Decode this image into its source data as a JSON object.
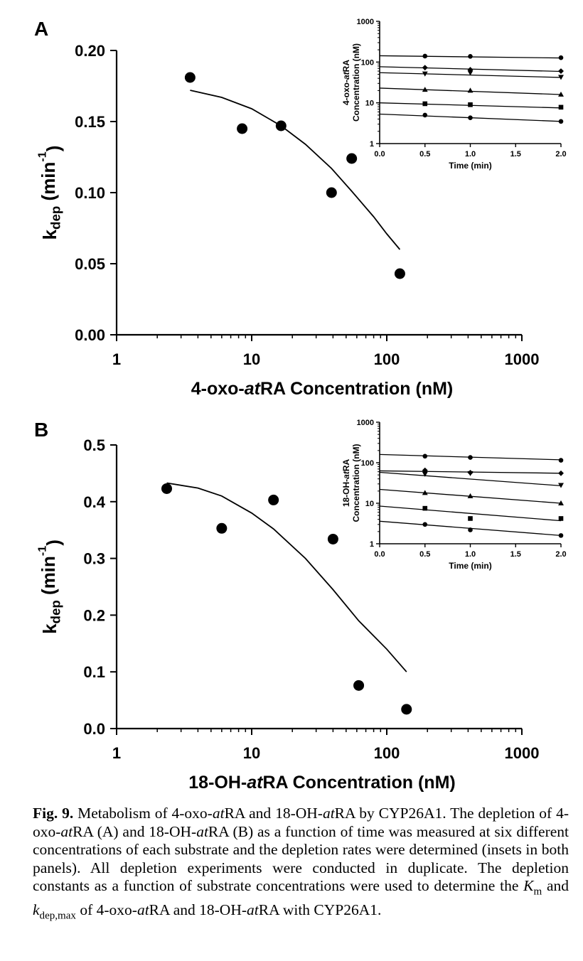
{
  "chart_data": [
    {
      "panel": "A",
      "type": "scatter",
      "xlabel_parts": [
        "4-oxo-",
        "at",
        "RA Concentration (nM)"
      ],
      "ylabel": "kdep (min-1)",
      "ylabel_parts": [
        "k",
        "dep",
        " (min",
        "-1",
        ")"
      ],
      "x_scale": "log",
      "xlim": [
        1,
        1000
      ],
      "ylim": [
        0,
        0.2
      ],
      "x_ticks": [
        1,
        10,
        100,
        1000
      ],
      "x_tick_labels": [
        "1",
        "10",
        "100",
        "1000"
      ],
      "y_ticks": [
        0,
        0.05,
        0.1,
        0.15,
        0.2
      ],
      "y_tick_labels": [
        "0.00",
        "0.05",
        "0.10",
        "0.15",
        "0.20"
      ],
      "points": [
        {
          "x": 3.5,
          "y": 0.181
        },
        {
          "x": 8.5,
          "y": 0.145
        },
        {
          "x": 16.5,
          "y": 0.147
        },
        {
          "x": 39,
          "y": 0.1
        },
        {
          "x": 55,
          "y": 0.124
        },
        {
          "x": 125,
          "y": 0.043
        }
      ],
      "fit": {
        "x": [
          3.5,
          6,
          10,
          16.5,
          25,
          39,
          55,
          80,
          100,
          125
        ],
        "y": [
          0.172,
          0.167,
          0.159,
          0.147,
          0.134,
          0.117,
          0.101,
          0.083,
          0.071,
          0.06
        ]
      },
      "inset": {
        "ylabel_parts": [
          "4-oxo-",
          "at",
          "RA"
        ],
        "ylabel2": "Concentration (nM)",
        "xlabel": "Time (min)",
        "y_scale": "log",
        "xlim": [
          0,
          2
        ],
        "ylim": [
          1,
          1000
        ],
        "x_ticks": [
          0,
          0.5,
          1,
          1.5,
          2
        ],
        "x_tick_labels": [
          "0.0",
          "0.5",
          "1.0",
          "1.5",
          "2.0"
        ],
        "y_ticks": [
          1,
          10,
          100,
          1000
        ],
        "y_tick_labels": [
          "1",
          "10",
          "100",
          "1000"
        ],
        "series": [
          {
            "marker": "circle",
            "x": [
              0.5,
              1,
              2
            ],
            "y": [
              140,
              138,
              128
            ],
            "fit": [
              143,
              126
            ]
          },
          {
            "marker": "diamond",
            "x": [
              0.5,
              1,
              2
            ],
            "y": [
              73,
              65,
              60
            ],
            "fit": [
              77,
              59
            ]
          },
          {
            "marker": "tri-down",
            "x": [
              0.5,
              1,
              2
            ],
            "y": [
              52,
              55,
              43
            ],
            "fit": [
              55,
              42
            ]
          },
          {
            "marker": "triangle",
            "x": [
              0.5,
              1,
              2
            ],
            "y": [
              21,
              20,
              16
            ],
            "fit": [
              23,
              16
            ]
          },
          {
            "marker": "square",
            "x": [
              0.5,
              1,
              2
            ],
            "y": [
              9.5,
              9,
              7.8
            ],
            "fit": [
              10,
              7.5
            ]
          },
          {
            "marker": "circle",
            "x": [
              0.5,
              1,
              2
            ],
            "y": [
              5,
              4.3,
              3.5
            ],
            "fit": [
              5.3,
              3.5
            ]
          }
        ]
      }
    },
    {
      "panel": "B",
      "type": "scatter",
      "xlabel_parts": [
        "18-OH-",
        "at",
        "RA Concentration (nM)"
      ],
      "ylabel": "kdep (min-1)",
      "ylabel_parts": [
        "k",
        "dep",
        " (min",
        "-1",
        ")"
      ],
      "x_scale": "log",
      "xlim": [
        1,
        1000
      ],
      "ylim": [
        0,
        0.5
      ],
      "x_ticks": [
        1,
        10,
        100,
        1000
      ],
      "x_tick_labels": [
        "1",
        "10",
        "100",
        "1000"
      ],
      "y_ticks": [
        0,
        0.1,
        0.2,
        0.3,
        0.4,
        0.5
      ],
      "y_tick_labels": [
        "0.0",
        "0.1",
        "0.2",
        "0.3",
        "0.4",
        "0.5"
      ],
      "points": [
        {
          "x": 2.35,
          "y": 0.423
        },
        {
          "x": 6,
          "y": 0.353
        },
        {
          "x": 14.5,
          "y": 0.403
        },
        {
          "x": 40,
          "y": 0.334
        },
        {
          "x": 62,
          "y": 0.076
        },
        {
          "x": 140,
          "y": 0.034
        }
      ],
      "fit": {
        "x": [
          2.35,
          4,
          6,
          10,
          14.5,
          25,
          40,
          62,
          100,
          140
        ],
        "y": [
          0.433,
          0.424,
          0.41,
          0.38,
          0.352,
          0.3,
          0.245,
          0.19,
          0.14,
          0.1
        ]
      },
      "inset": {
        "ylabel_parts": [
          "18-OH-",
          "at",
          "RA"
        ],
        "ylabel2": "Concentration (nM)",
        "xlabel": "Time (min)",
        "y_scale": "log",
        "xlim": [
          0,
          2
        ],
        "ylim": [
          1,
          1000
        ],
        "x_ticks": [
          0,
          0.5,
          1,
          1.5,
          2
        ],
        "x_tick_labels": [
          "0.0",
          "0.5",
          "1.0",
          "1.5",
          "2.0"
        ],
        "y_ticks": [
          1,
          10,
          100,
          1000
        ],
        "y_tick_labels": [
          "1",
          "10",
          "100",
          "1000"
        ],
        "series": [
          {
            "marker": "circle",
            "x": [
              0.5,
              1,
              2
            ],
            "y": [
              145,
              135,
              115
            ],
            "fit": [
              160,
              118
            ]
          },
          {
            "marker": "diamond",
            "x": [
              0.5,
              1,
              2
            ],
            "y": [
              65,
              57,
              55
            ],
            "fit": [
              63,
              55
            ]
          },
          {
            "marker": "tri-down",
            "x": [
              0.5,
              1,
              2
            ],
            "y": [
              53,
              55,
              28
            ],
            "fit": [
              58,
              27
            ]
          },
          {
            "marker": "triangle",
            "x": [
              0.5,
              1,
              2
            ],
            "y": [
              18,
              15,
              10
            ],
            "fit": [
              22,
              10
            ]
          },
          {
            "marker": "square",
            "x": [
              0.5,
              1,
              2
            ],
            "y": [
              7.5,
              4.2,
              4.2
            ],
            "fit": [
              8.5,
              3.7
            ]
          },
          {
            "marker": "circle",
            "x": [
              0.5,
              1,
              2
            ],
            "y": [
              3,
              2.2,
              1.6
            ],
            "fit": [
              3.6,
              1.6
            ]
          }
        ]
      }
    }
  ],
  "caption": {
    "label": "Fig. 9.",
    "segments": [
      {
        "t": " Metabolism of 4-oxo-",
        "s": "n"
      },
      {
        "t": "at",
        "s": "i"
      },
      {
        "t": "RA and 18-OH-",
        "s": "n"
      },
      {
        "t": "at",
        "s": "i"
      },
      {
        "t": "RA by CYP26A1. The depletion of 4-oxo-",
        "s": "n"
      },
      {
        "t": "at",
        "s": "i"
      },
      {
        "t": "RA (A) and 18-OH-",
        "s": "n"
      },
      {
        "t": "at",
        "s": "i"
      },
      {
        "t": "RA (B) as a function of time was measured at six different concentrations of each substrate and the depletion rates were determined (insets in both panels). All depletion experiments were conducted in duplicate. The depletion constants as a function of substrate concentrations were used to determine the ",
        "s": "n"
      },
      {
        "t": "K",
        "s": "i"
      },
      {
        "t": "m",
        "s": "sub"
      },
      {
        "t": " and ",
        "s": "n"
      },
      {
        "t": "k",
        "s": "i"
      },
      {
        "t": "dep,max",
        "s": "sub"
      },
      {
        "t": " of 4-oxo-",
        "s": "n"
      },
      {
        "t": "at",
        "s": "i"
      },
      {
        "t": "RA and 18-OH-",
        "s": "n"
      },
      {
        "t": "at",
        "s": "i"
      },
      {
        "t": "RA with CYP26A1.",
        "s": "n"
      }
    ]
  }
}
